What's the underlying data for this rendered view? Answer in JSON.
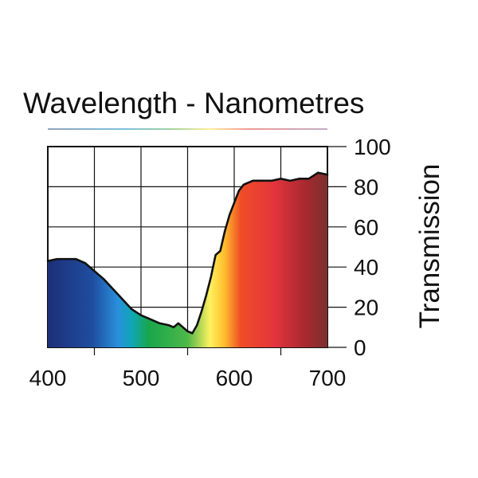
{
  "chart_data": {
    "type": "area",
    "title": "Wavelength - Nanometres",
    "xlabel": "",
    "ylabel": "Transmission",
    "xlim": [
      400,
      700
    ],
    "ylim": [
      0,
      100
    ],
    "x_ticks": [
      400,
      500,
      600,
      700
    ],
    "y_ticks": [
      0,
      20,
      40,
      60,
      80,
      100
    ],
    "grid": true,
    "fill": "visible spectrum gradient",
    "series": [
      {
        "x": [
          400,
          410,
          420,
          430,
          440,
          450,
          460,
          470,
          480,
          490,
          500,
          510,
          520,
          530,
          535,
          540,
          545,
          550,
          555,
          560,
          565,
          570,
          575,
          580,
          585,
          590,
          595,
          600,
          605,
          610,
          615,
          620,
          630,
          640,
          650,
          660,
          670,
          680,
          690,
          700
        ],
        "values": [
          43,
          44,
          44,
          44,
          42,
          38,
          34,
          29,
          24,
          19,
          16,
          14,
          12,
          11,
          10,
          12,
          10,
          8,
          7,
          11,
          18,
          26,
          35,
          46,
          48,
          58,
          66,
          72,
          78,
          81,
          82,
          83,
          83,
          83,
          84,
          83,
          84,
          84,
          87,
          86
        ]
      }
    ]
  }
}
